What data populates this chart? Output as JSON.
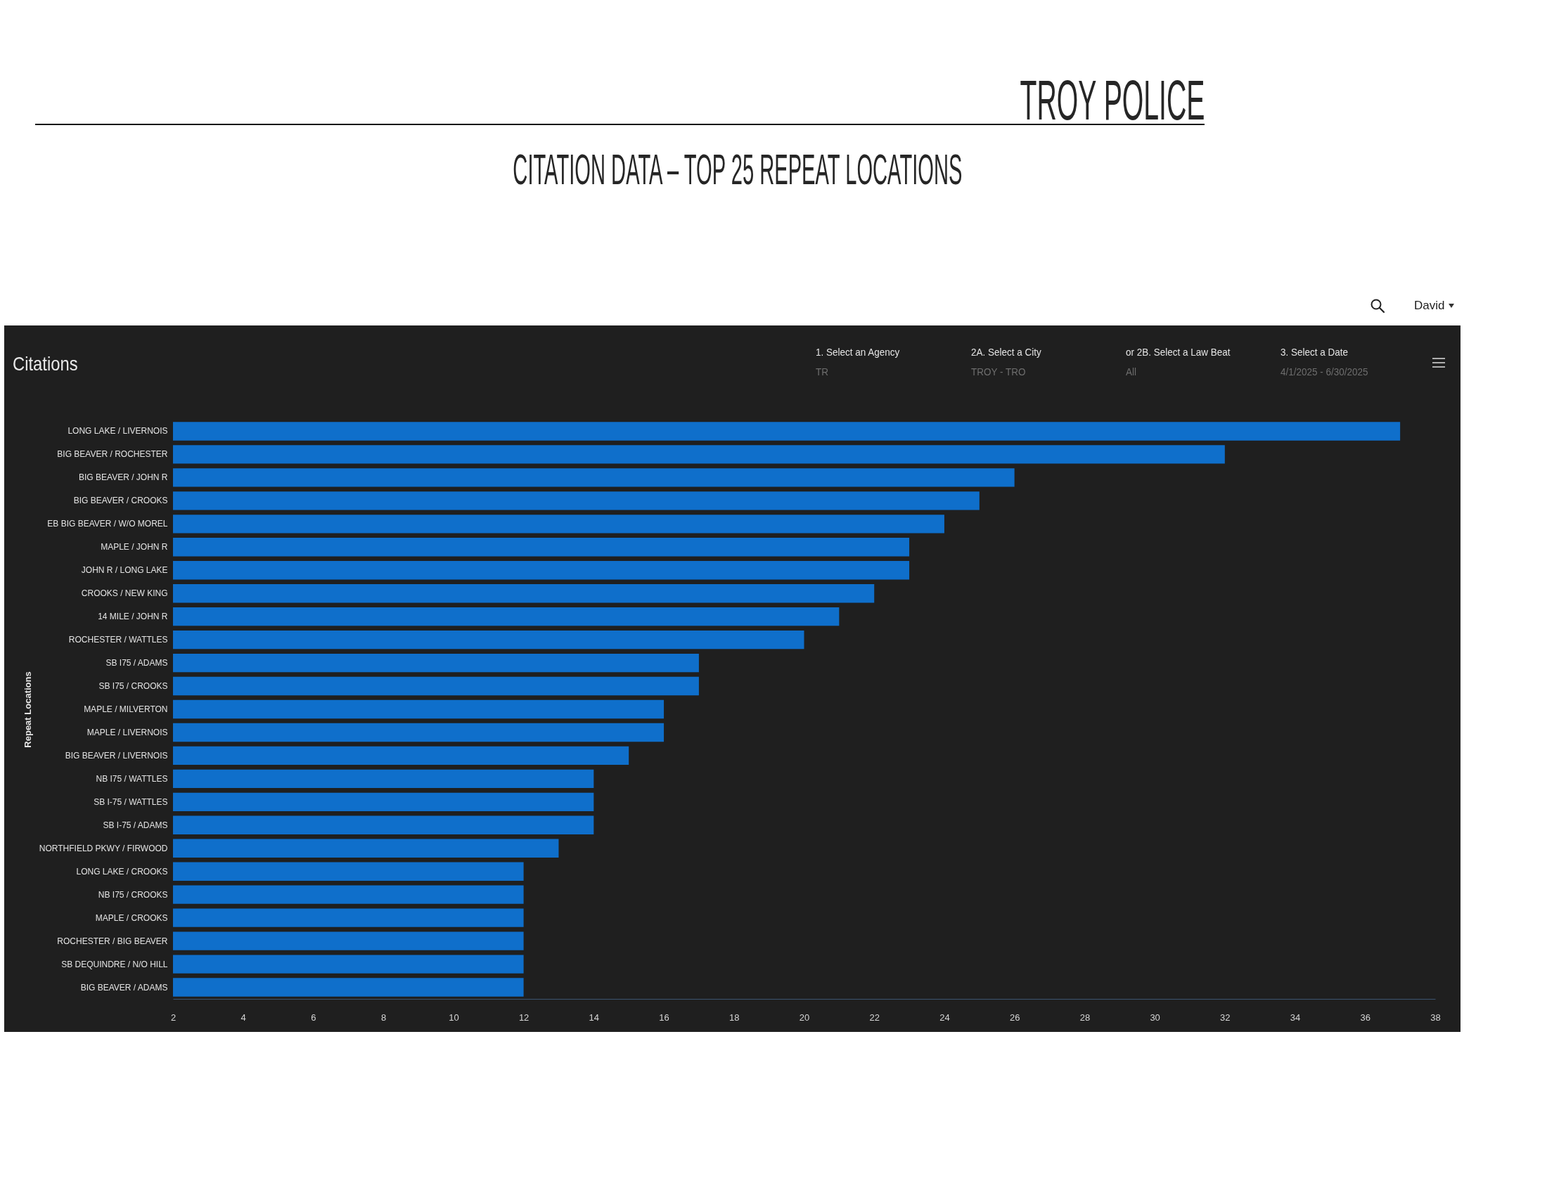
{
  "chart_data": {
    "type": "bar",
    "orientation": "horizontal",
    "title": "CITATION DATA – TOP 25 REPEAT LOCATIONS",
    "ylabel": "Repeat Locations",
    "categories": [
      "LONG LAKE / LIVERNOIS",
      "BIG BEAVER / ROCHESTER",
      "BIG BEAVER / JOHN R",
      "BIG BEAVER / CROOKS",
      "EB BIG BEAVER / W/O MOREL",
      "MAPLE / JOHN R",
      "JOHN R / LONG LAKE",
      "CROOKS / NEW KING",
      "14 MILE / JOHN R",
      "ROCHESTER / WATTLES",
      "SB I75 / ADAMS",
      "SB I75 / CROOKS",
      "MAPLE / MILVERTON",
      "MAPLE / LIVERNOIS",
      "BIG BEAVER / LIVERNOIS",
      "NB I75 / WATTLES",
      "SB I-75 / WATTLES",
      "SB I-75 / ADAMS",
      "NORTHFIELD PKWY / FIRWOOD",
      "LONG LAKE / CROOKS",
      "NB I75 / CROOKS",
      "MAPLE / CROOKS",
      "ROCHESTER / BIG BEAVER",
      "SB DEQUINDRE / N/O HILL",
      "BIG BEAVER / ADAMS"
    ],
    "values": [
      37,
      32,
      26,
      25,
      24,
      23,
      23,
      22,
      21,
      20,
      17,
      17,
      16,
      16,
      15,
      14,
      14,
      14,
      13,
      12,
      12,
      12,
      12,
      12,
      12
    ],
    "color": "#0f6fcb",
    "xlim": [
      2,
      38
    ],
    "xticks": [
      2,
      4,
      6,
      8,
      10,
      12,
      14,
      16,
      18,
      20,
      22,
      24,
      26,
      28,
      30,
      32,
      34,
      36,
      38
    ],
    "annotations": [
      "TROY POLICE",
      "David",
      "Citations",
      "1. Select an Agency",
      "TR",
      "2A. Select a City",
      "TROY - TRO",
      "or 2B. Select a Law Beat",
      "All",
      "3. Select a Date",
      "4/1/2025 - 6/30/2025"
    ]
  }
}
